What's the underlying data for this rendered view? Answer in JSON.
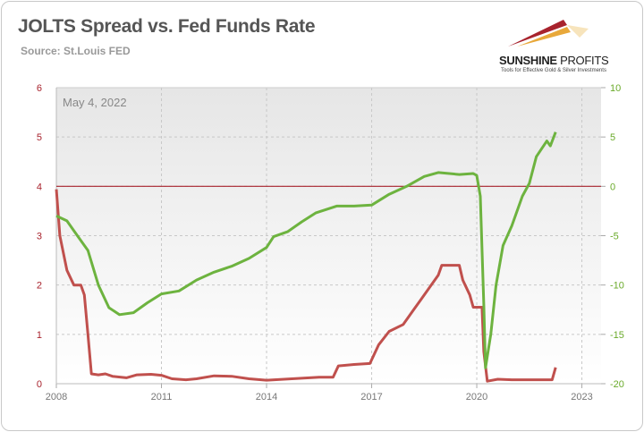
{
  "header": {
    "title": "JOLTS Spread vs. Fed Funds Rate",
    "subtitle": "Source: St.Louis FED",
    "logo_name_bold": "SUNSHINE",
    "logo_name_rest": " PROFITS",
    "logo_tagline": "Tools for Effective Gold & Silver Investments"
  },
  "chart_data": {
    "type": "line",
    "title": "JOLTS Spread vs. Fed Funds Rate",
    "annotation": "May 4, 2022",
    "x_ticks": [
      "2008",
      "2011",
      "2014",
      "2017",
      "2020",
      "2023"
    ],
    "xlim": [
      2008,
      2023.6
    ],
    "y_left": {
      "ticks": [
        "0",
        "1",
        "2",
        "3",
        "4",
        "5",
        "6"
      ],
      "ylim": [
        0,
        6
      ],
      "color": "#a8232d"
    },
    "y_right": {
      "ticks": [
        "-20",
        "-15",
        "-10",
        "-5",
        "0",
        "5",
        "10"
      ],
      "ylim": [
        -20,
        10
      ],
      "color": "#6aaa2a"
    },
    "reference_line": {
      "axis": "right",
      "value": 0,
      "color": "#a8232d"
    },
    "grid": "vertical dashed + horizontal dashed",
    "series": [
      {
        "name": "Fed Funds Rate",
        "axis": "left",
        "color": "#c0504d",
        "x": [
          2008.0,
          2008.1,
          2008.3,
          2008.5,
          2008.7,
          2008.8,
          2008.9,
          2009.0,
          2009.2,
          2009.4,
          2009.6,
          2010.0,
          2010.3,
          2010.7,
          2011.0,
          2011.3,
          2011.7,
          2012.0,
          2012.5,
          2013.0,
          2013.5,
          2014.0,
          2014.5,
          2015.0,
          2015.5,
          2015.9,
          2016.05,
          2016.5,
          2016.95,
          2017.2,
          2017.5,
          2017.9,
          2018.2,
          2018.4,
          2018.7,
          2018.9,
          2019.0,
          2019.5,
          2019.6,
          2019.8,
          2019.9,
          2020.15,
          2020.2,
          2020.3,
          2020.6,
          2021.0,
          2021.5,
          2022.0,
          2022.15,
          2022.25
        ],
        "y": [
          3.94,
          3.0,
          2.3,
          2.0,
          2.0,
          1.8,
          1.0,
          0.2,
          0.18,
          0.2,
          0.15,
          0.12,
          0.18,
          0.19,
          0.17,
          0.1,
          0.08,
          0.1,
          0.16,
          0.15,
          0.1,
          0.07,
          0.09,
          0.11,
          0.13,
          0.13,
          0.36,
          0.39,
          0.41,
          0.79,
          1.06,
          1.2,
          1.5,
          1.7,
          2.0,
          2.2,
          2.4,
          2.4,
          2.1,
          1.8,
          1.55,
          1.55,
          0.65,
          0.05,
          0.09,
          0.08,
          0.08,
          0.08,
          0.08,
          0.33
        ]
      },
      {
        "name": "JOLTS Spread",
        "axis": "right",
        "color": "#6db33f",
        "x": [
          2008.0,
          2008.3,
          2008.6,
          2008.9,
          2009.2,
          2009.5,
          2009.8,
          2010.2,
          2010.6,
          2011.0,
          2011.5,
          2012.0,
          2012.5,
          2013.0,
          2013.5,
          2014.0,
          2014.2,
          2014.6,
          2015.0,
          2015.4,
          2016.0,
          2016.5,
          2017.0,
          2017.5,
          2018.0,
          2018.5,
          2018.9,
          2019.5,
          2019.9,
          2020.0,
          2020.1,
          2020.2,
          2020.25,
          2020.4,
          2020.55,
          2020.75,
          2021.0,
          2021.3,
          2021.5,
          2021.7,
          2022.0,
          2022.1,
          2022.25
        ],
        "y": [
          -3.0,
          -3.5,
          -5.0,
          -6.5,
          -10.0,
          -12.3,
          -13.0,
          -12.8,
          -11.8,
          -10.9,
          -10.6,
          -9.5,
          -8.7,
          -8.1,
          -7.3,
          -6.2,
          -5.1,
          -4.6,
          -3.6,
          -2.7,
          -2.0,
          -2.0,
          -1.9,
          -0.8,
          0.0,
          1.0,
          1.4,
          1.2,
          1.3,
          1.1,
          -1.0,
          -12.0,
          -18.4,
          -15.0,
          -10.0,
          -6.0,
          -4.0,
          -1.0,
          0.3,
          3.0,
          4.6,
          4.1,
          5.5
        ]
      }
    ]
  }
}
